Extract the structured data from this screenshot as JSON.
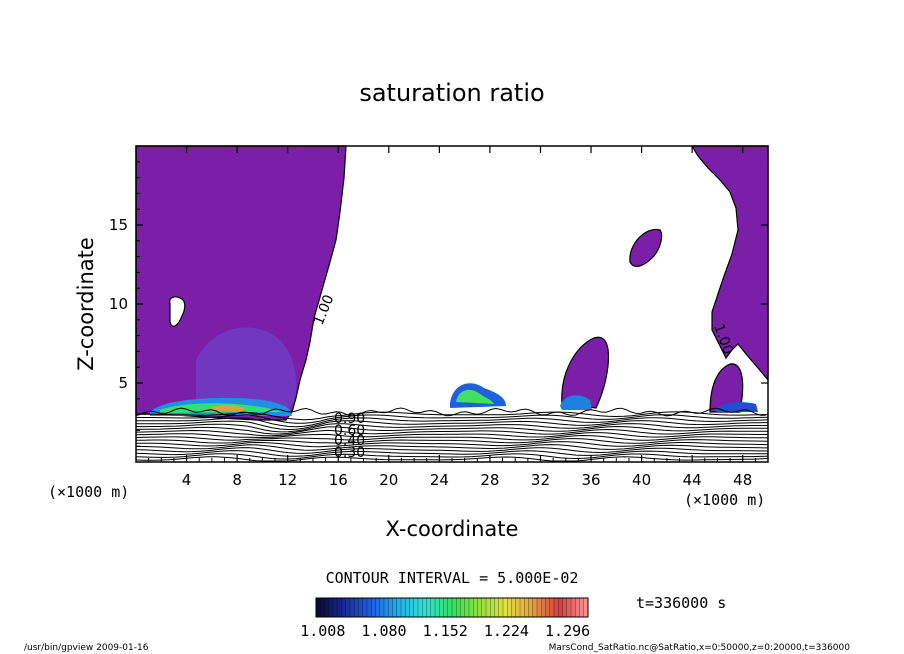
{
  "chart_data": {
    "type": "heatmap",
    "title": "saturation ratio",
    "xlabel": "X-coordinate",
    "ylabel": "Z-coordinate",
    "x_unit": "(×1000 m)",
    "x_unit_right": "(×1000 m)",
    "y_unit": "(×1000 m)",
    "xlim": [
      0,
      50
    ],
    "ylim": [
      0,
      20
    ],
    "x_ticks": [
      4,
      8,
      12,
      16,
      20,
      24,
      28,
      32,
      36,
      40,
      44,
      48
    ],
    "y_ticks": [
      5,
      10,
      15
    ],
    "contour_labels": [
      "1.00",
      "1.00",
      "0.90",
      "0.60",
      "0.40",
      "0.30"
    ],
    "contour_interval": "CONTOUR INTERVAL = 5.000E-02",
    "time_label": "t=336000 s",
    "colorbar_ticks": [
      "1.008",
      "1.080",
      "1.152",
      "1.224",
      "1.296"
    ],
    "colorbar_range": [
      1.0,
      1.32
    ],
    "colors": {
      "background_fill": "#7b1fa9",
      "mid_fill": "#6f3fc4",
      "contour": "#000000"
    },
    "colormap": [
      "#0a0a3a",
      "#1a2a9a",
      "#2060e0",
      "#20b0e8",
      "#30e0d0",
      "#30e060",
      "#90e040",
      "#e0e040",
      "#e0a040",
      "#d04040",
      "#ff9090"
    ]
  },
  "footer": {
    "left": "/usr/bin/gpview  2009-01-16",
    "right": "MarsCond_SatRatio.nc@SatRatio,x=0:50000,z=0:20000,t=336000"
  }
}
